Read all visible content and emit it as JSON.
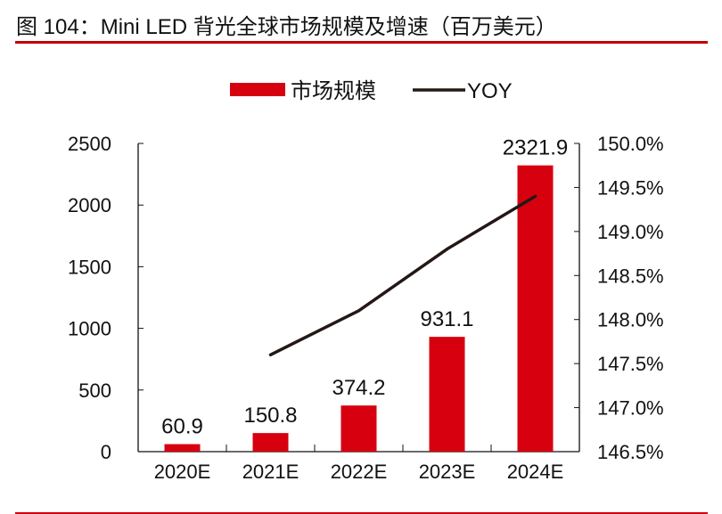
{
  "title": "图 104：Mini LED 背光全球市场规模及增速（百万美元）",
  "chart_data": {
    "type": "bar+line",
    "categories": [
      "2020E",
      "2021E",
      "2022E",
      "2023E",
      "2024E"
    ],
    "series": [
      {
        "name": "市场规模",
        "type": "bar",
        "axis": "left",
        "values": [
          60.9,
          150.8,
          374.2,
          931.1,
          2321.9
        ],
        "color": "#d7000f"
      },
      {
        "name": "YOY",
        "type": "line",
        "axis": "right",
        "values": [
          null,
          147.6,
          148.1,
          148.8,
          149.4
        ],
        "color": "#231815"
      }
    ],
    "data_labels": [
      "60.9",
      "150.8",
      "374.2",
      "931.1",
      "2321.9"
    ],
    "left_axis": {
      "ylim": [
        0,
        2500
      ],
      "ticks": [
        0,
        500,
        1000,
        1500,
        2000,
        2500
      ],
      "tick_labels": [
        "0",
        "500",
        "1000",
        "1500",
        "2000",
        "2500"
      ]
    },
    "right_axis": {
      "ylim": [
        146.5,
        150.0
      ],
      "ticks": [
        146.5,
        147.0,
        147.5,
        148.0,
        148.5,
        149.0,
        149.5,
        150.0
      ],
      "tick_labels": [
        "146.5%",
        "147.0%",
        "147.5%",
        "148.0%",
        "148.5%",
        "149.0%",
        "149.5%",
        "150.0%"
      ]
    },
    "legend": {
      "placement": "top",
      "entries": [
        "市场规模",
        "YOY"
      ]
    },
    "grid": false
  }
}
